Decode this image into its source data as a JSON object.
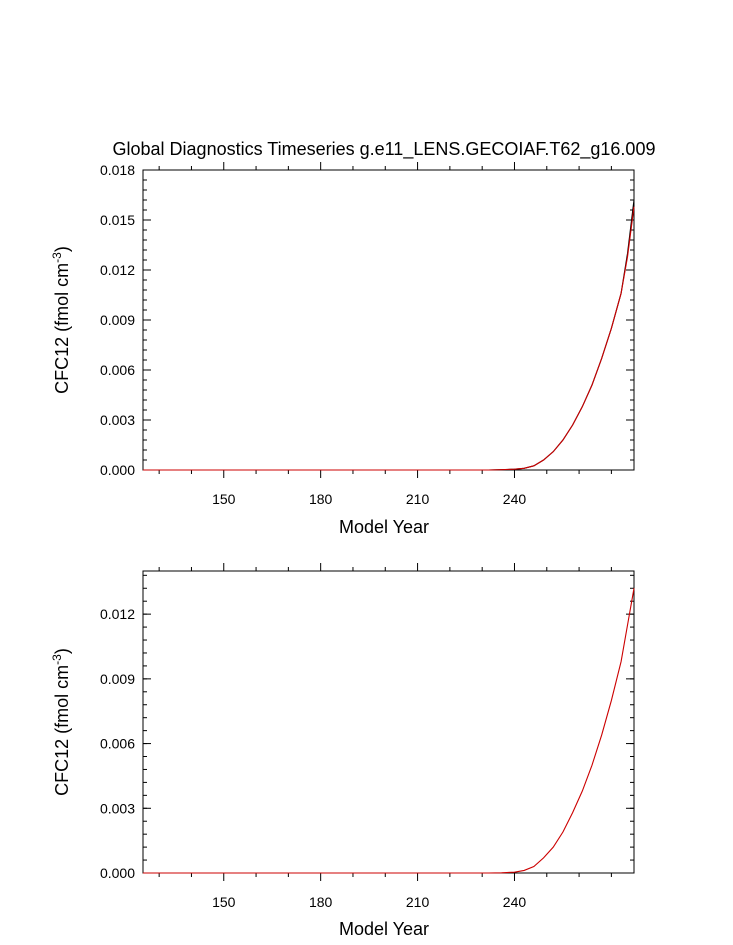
{
  "chart_data": [
    {
      "type": "line",
      "title": "Global Diagnostics Timeseries g.e11_LENS.GECOIAF.T62_g16.009",
      "xlabel": "Model Year",
      "ylabel": "CFC12 (fmol cm",
      "ylabel_sup": "-3",
      "ylabel_close": ")",
      "xlim": [
        125,
        277
      ],
      "ylim": [
        0.0,
        0.018
      ],
      "xticks": [
        150,
        180,
        210,
        240
      ],
      "yticks": [
        "0.000",
        "0.003",
        "0.006",
        "0.009",
        "0.012",
        "0.015",
        "0.018"
      ],
      "grid": false,
      "series": [
        {
          "color": "#000000",
          "x": [
            125,
            200,
            232,
            236,
            240,
            243,
            246,
            249,
            252,
            255,
            258,
            261,
            264,
            267,
            270,
            273,
            275,
            277
          ],
          "y": [
            0,
            0,
            0,
            2e-05,
            5e-05,
            0.0001,
            0.00025,
            0.0006,
            0.0011,
            0.0018,
            0.0027,
            0.0038,
            0.0051,
            0.0067,
            0.0085,
            0.0106,
            0.013,
            0.0162
          ]
        },
        {
          "color": "#cc0000",
          "x": [
            125,
            200,
            232,
            236,
            240,
            243,
            246,
            249,
            252,
            255,
            258,
            261,
            264,
            267,
            270,
            273,
            275,
            277
          ],
          "y": [
            0,
            0,
            0,
            2e-05,
            5e-05,
            0.0001,
            0.00025,
            0.0006,
            0.0011,
            0.0018,
            0.0027,
            0.0038,
            0.0051,
            0.0067,
            0.0085,
            0.0106,
            0.0128,
            0.0158
          ]
        }
      ]
    },
    {
      "type": "line",
      "title": "",
      "xlabel": "Model Year",
      "ylabel": "CFC12 (fmol cm",
      "ylabel_sup": "-3",
      "ylabel_close": ")",
      "xlim": [
        125,
        277
      ],
      "ylim": [
        0.0,
        0.014
      ],
      "xticks": [
        150,
        180,
        210,
        240
      ],
      "yticks": [
        "0.000",
        "0.003",
        "0.006",
        "0.009",
        "0.012"
      ],
      "grid": false,
      "series": [
        {
          "color": "#cc0000",
          "x": [
            125,
            200,
            232,
            236,
            240,
            243,
            246,
            249,
            252,
            255,
            258,
            261,
            264,
            267,
            270,
            273,
            275,
            277
          ],
          "y": [
            0,
            0,
            0,
            1e-05,
            4e-05,
            0.00012,
            0.0003,
            0.0007,
            0.0012,
            0.0019,
            0.0028,
            0.0038,
            0.005,
            0.0064,
            0.008,
            0.0098,
            0.0115,
            0.0132
          ]
        }
      ]
    }
  ]
}
